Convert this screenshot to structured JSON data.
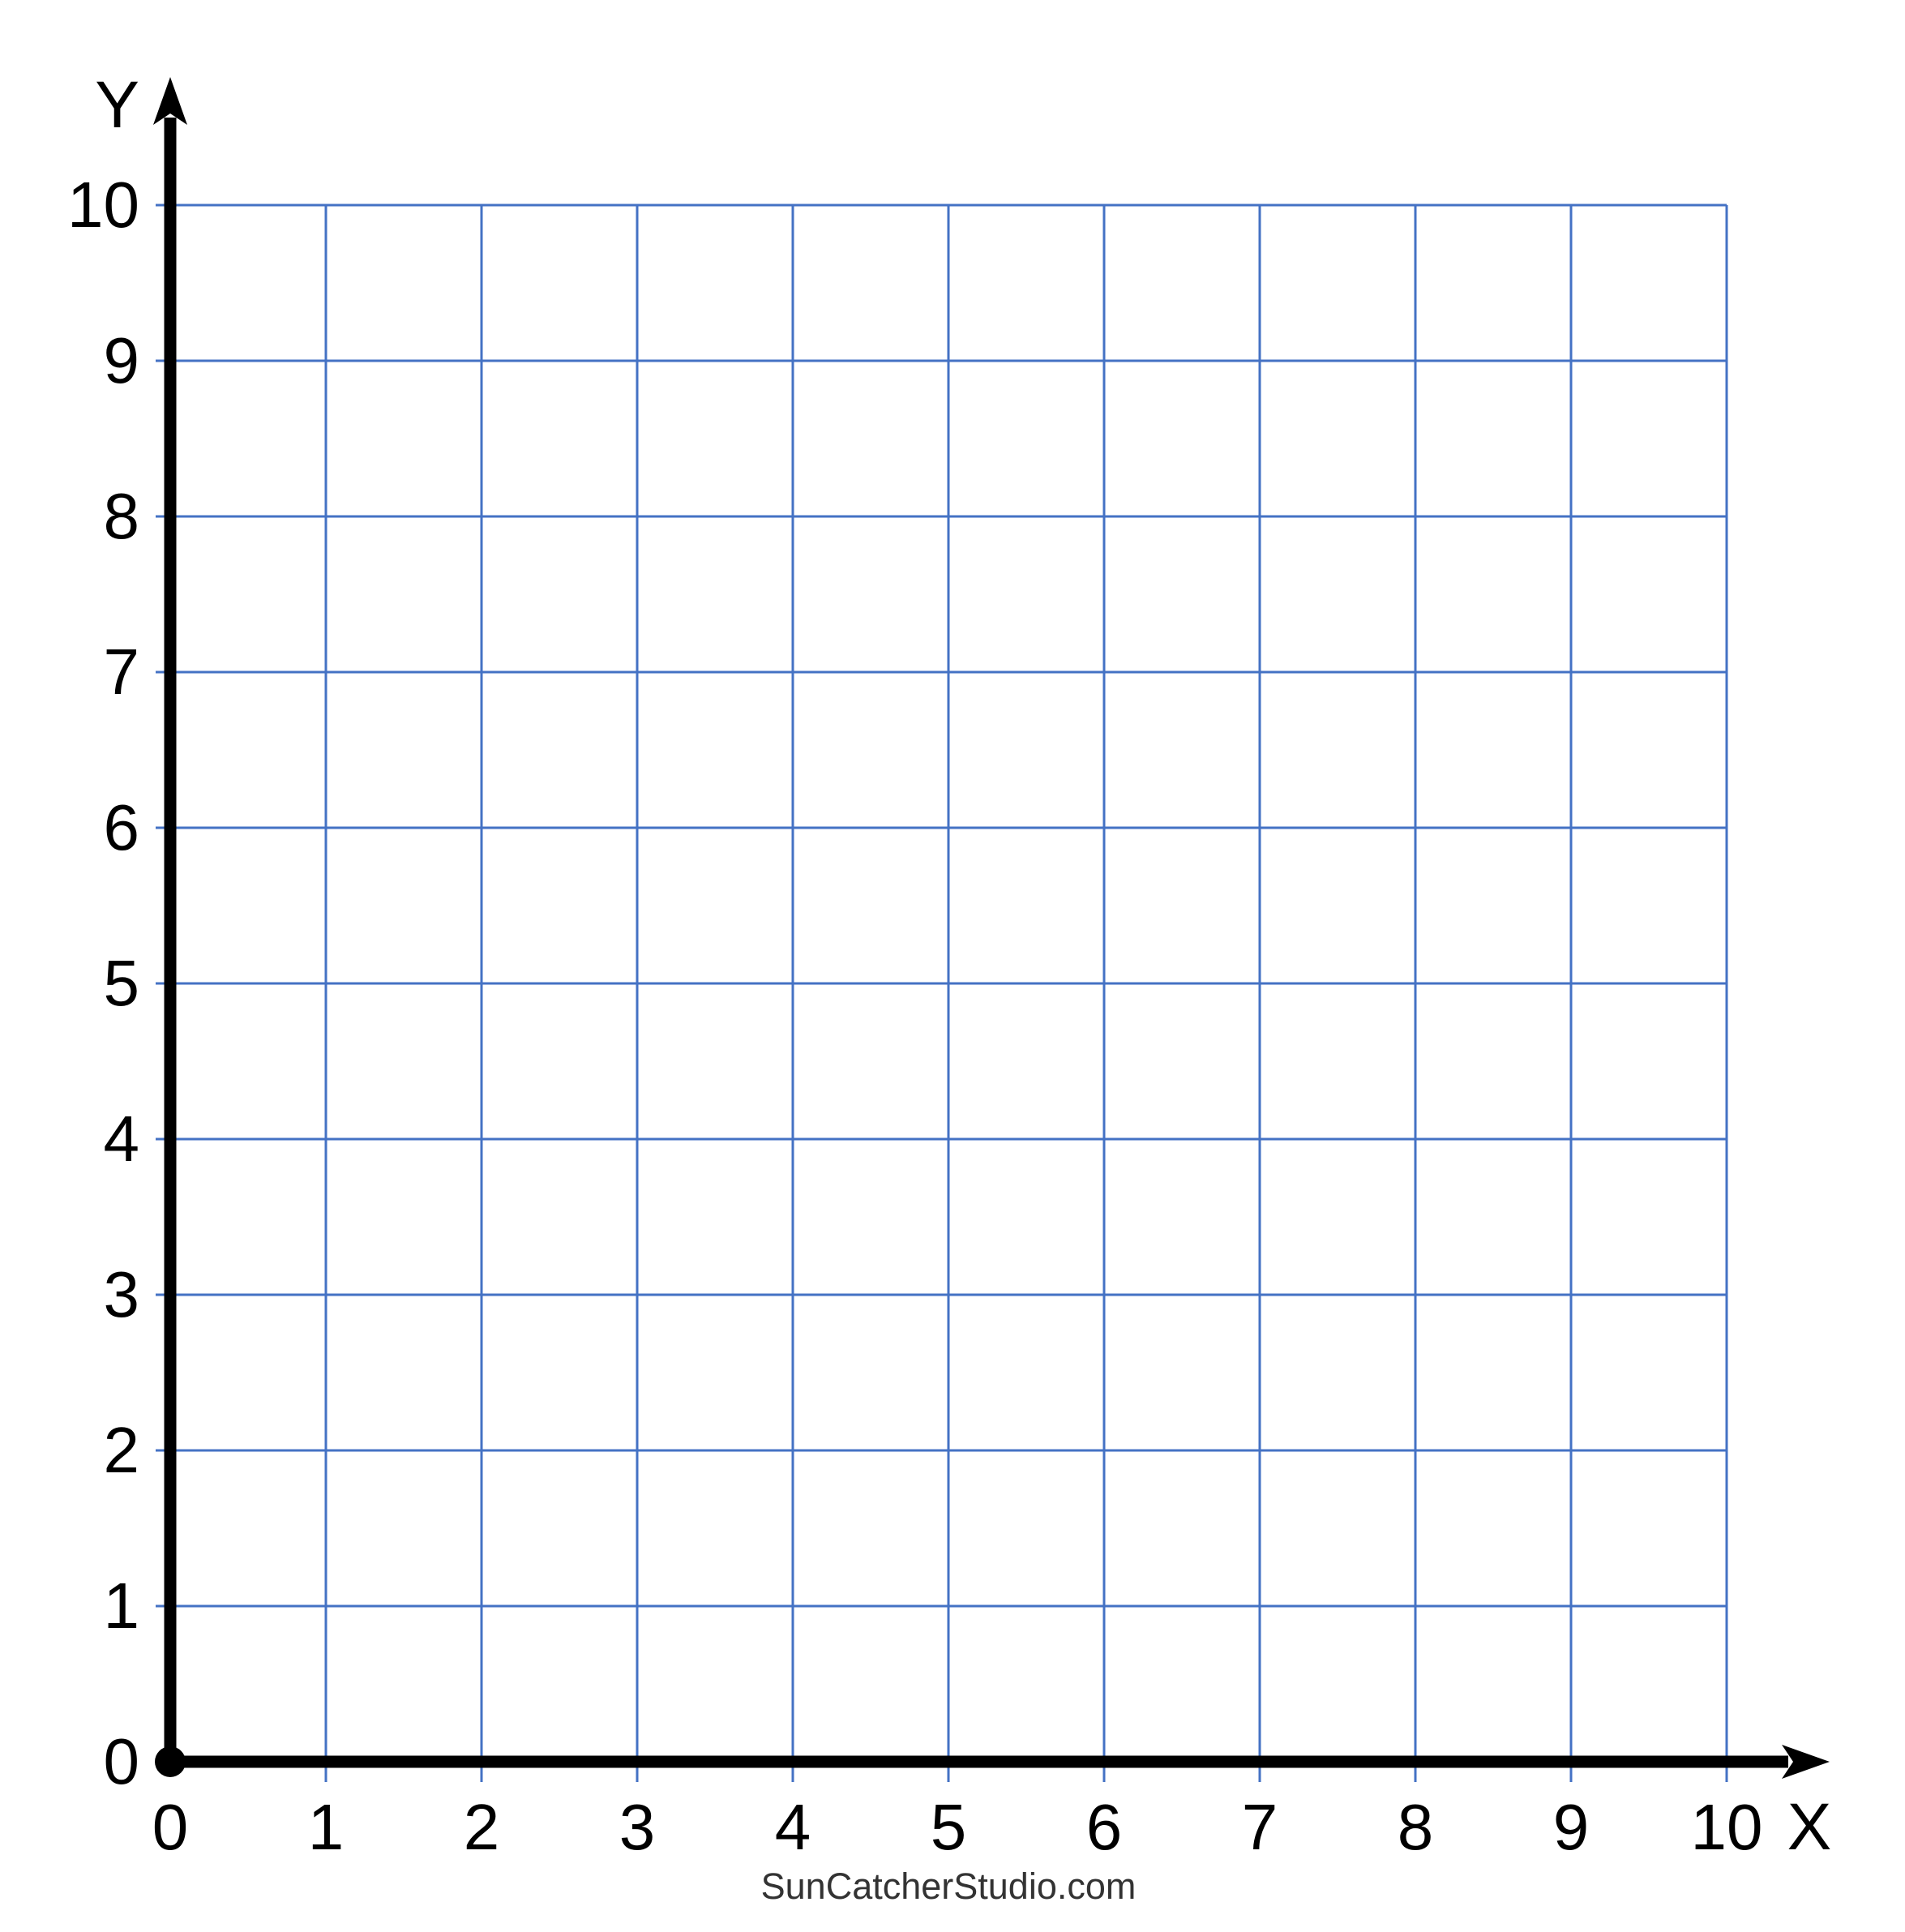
{
  "page": {
    "watermark": "SunCatcherStudio.com"
  },
  "chart_data": {
    "type": "grid",
    "title": "",
    "subtitle": "",
    "xlabel": "X",
    "ylabel": "Y",
    "x_ticks": [
      "0",
      "1",
      "2",
      "3",
      "4",
      "5",
      "6",
      "7",
      "8",
      "9",
      "10"
    ],
    "y_ticks": [
      "0",
      "1",
      "2",
      "3",
      "4",
      "5",
      "6",
      "7",
      "8",
      "9",
      "10"
    ],
    "xlim": [
      0,
      10
    ],
    "ylim": [
      0,
      10
    ],
    "grid": true,
    "legend": false,
    "series": [],
    "grid_color": "#4472C4",
    "axis_color": "#000000",
    "label_color": "#000000",
    "watermark_color": "#333333"
  }
}
